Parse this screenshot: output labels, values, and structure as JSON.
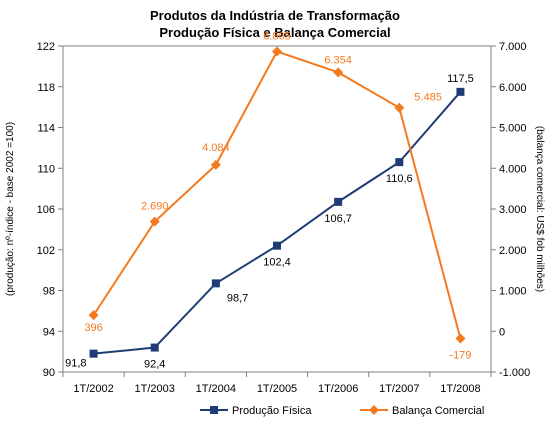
{
  "chart_data": {
    "type": "line",
    "title": "Produtos da Indústria de Transformação",
    "subtitle": "Produção Física e Balança Comercial",
    "categories": [
      "1T/2002",
      "1T/2003",
      "1T/2004",
      "1T/2005",
      "1T/2006",
      "1T/2007",
      "1T/2008"
    ],
    "ylabel_left": "(produção: nº-índice - base 2002 =100)",
    "ylabel_right": "(balança comercial: US$ fob milhões)",
    "ylim_left": [
      90,
      122
    ],
    "yticks_left": [
      "90",
      "94",
      "98",
      "102",
      "106",
      "110",
      "114",
      "118",
      "122"
    ],
    "ylim_right": [
      -1000,
      7000
    ],
    "yticks_right": [
      "-1.000",
      "0",
      "1.000",
      "2.000",
      "3.000",
      "4.000",
      "5.000",
      "6.000",
      "7.000"
    ],
    "grid": false,
    "legend_position": "bottom",
    "series": [
      {
        "name": "Produção Física",
        "axis": "left",
        "color": "#1f3c74",
        "marker": "square",
        "values": [
          91.8,
          92.4,
          98.7,
          102.4,
          106.7,
          110.6,
          117.5
        ],
        "labels": [
          "91,8",
          "92,4",
          "98,7",
          "102,4",
          "106,7",
          "110,6",
          "117,5"
        ]
      },
      {
        "name": "Balança Comercial",
        "axis": "right",
        "color": "#f47a1f",
        "marker": "diamond",
        "values": [
          396,
          2690,
          4084,
          6865,
          6354,
          5485,
          -179
        ],
        "labels": [
          "396",
          "2.690",
          "4.084",
          "6.865",
          "6.354",
          "5.485",
          "-179"
        ]
      }
    ]
  }
}
